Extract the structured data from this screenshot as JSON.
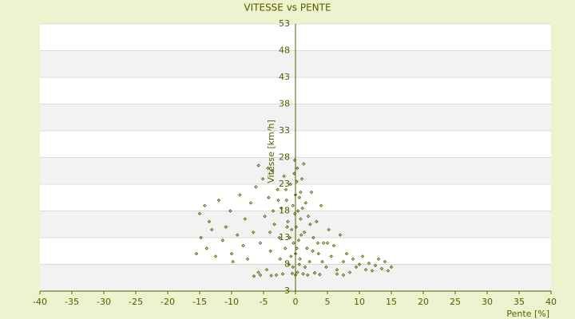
{
  "chart_data": {
    "type": "scatter",
    "title": "VITESSE vs PENTE",
    "x_label": "Pente [%]",
    "y_label": "Vitesse [km/h]",
    "color": "#5c5c00",
    "xlim": [
      -40,
      40
    ],
    "xticks": [
      -40,
      -35,
      -30,
      -25,
      -20,
      -15,
      -10,
      -5,
      0,
      5,
      10,
      15,
      20,
      25,
      30,
      35,
      40
    ],
    "ylim": [
      3,
      53
    ],
    "yticks": [
      3,
      8,
      13,
      18,
      23,
      28,
      33,
      38,
      43,
      48,
      53
    ],
    "grid": true,
    "x": [
      -15.5,
      -15,
      -14.8,
      -14.2,
      -13.9,
      -13.5,
      -13.1,
      -12.5,
      -12,
      -11.4,
      -10.9,
      -10.2,
      -10,
      -9.8,
      -9.1,
      -8.7,
      -8.2,
      -7.9,
      -7.5,
      -7,
      -6.6,
      -6.2,
      -5.8,
      -5.5,
      -5.1,
      -4.8,
      -4.5,
      -4.2,
      -3.9,
      -3.6,
      -3.3,
      -3,
      -2.8,
      -2.5,
      -2.2,
      -2,
      -1.8,
      -1.6,
      -1.4,
      -1.2,
      -1,
      -0.8,
      -0.6,
      -0.5,
      -0.4,
      -0.3,
      -0.2,
      -0.1,
      0,
      0,
      0,
      0.1,
      0.2,
      0.3,
      0.4,
      0.5,
      0.6,
      0.7,
      0.8,
      1,
      1.2,
      1.4,
      1.6,
      1.8,
      2,
      2.2,
      2.5,
      2.8,
      3,
      3.3,
      3.6,
      4,
      4.4,
      4.8,
      5.2,
      5.6,
      6,
      6.5,
      7,
      7.5,
      8,
      8.5,
      9,
      9.5,
      10,
      10.5,
      11,
      11.5,
      12,
      12.5,
      13,
      13.5,
      14,
      14.5,
      15,
      -1.5,
      -0.7,
      0.3,
      0.9,
      1.5,
      -2.4,
      2.3,
      -3.5,
      3.5,
      -0.9,
      0.6,
      1.1,
      -1.3,
      2.7,
      -2.7,
      4.2,
      -4,
      5,
      0.2,
      -0.4,
      1.9,
      -5.5,
      6.5,
      7.5,
      -6.5,
      3.8,
      -3.8,
      0.8,
      -0.1,
      -4.3,
      -5.8,
      1.3
    ],
    "values": [
      10,
      17.5,
      13,
      19,
      11,
      16,
      14.5,
      9.5,
      20,
      12.5,
      15,
      18,
      10,
      8.5,
      13.5,
      21,
      11.5,
      16.5,
      9,
      19.5,
      14,
      22.5,
      6.5,
      12,
      24,
      17,
      7,
      20.5,
      10.5,
      25.5,
      15.5,
      6,
      22,
      13,
      18.5,
      6.2,
      24.5,
      11,
      20,
      16,
      8,
      23,
      14.5,
      6.3,
      19,
      12,
      25,
      17.5,
      6,
      21,
      10,
      15,
      23.5,
      6.5,
      18,
      12.5,
      20.5,
      9,
      16.5,
      24,
      6.2,
      14,
      19.5,
      11,
      17,
      8.5,
      21.5,
      13,
      6.4,
      16,
      10,
      19,
      12,
      7.5,
      14.5,
      9.5,
      11.5,
      7,
      13.5,
      8.5,
      10,
      6.5,
      9,
      7.5,
      8,
      9.5,
      7,
      8.2,
      6.8,
      7.8,
      9,
      7.2,
      8.5,
      6.8,
      7.5,
      22,
      9.5,
      26,
      13.5,
      7.5,
      9,
      15.5,
      18,
      12,
      13,
      8,
      18.5,
      15,
      10.5,
      20,
      8.5,
      14,
      12,
      11,
      7.5,
      6,
      6,
      6.2,
      6,
      5.8,
      6.1,
      5.9,
      21.5,
      27.5,
      26,
      26.5,
      26.8
    ]
  }
}
